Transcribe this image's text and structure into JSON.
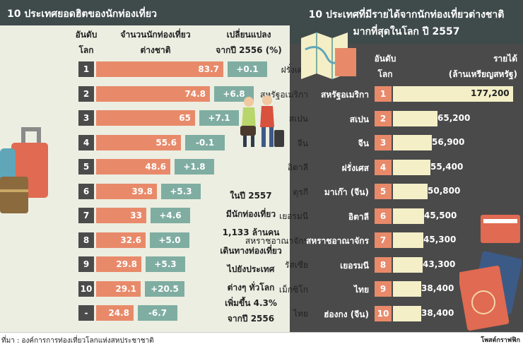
{
  "left": {
    "title": "10 ประเทศยอดฮิตของนักท่องเที่ยว",
    "headers": {
      "rank": [
        "อันดับ",
        "โลก"
      ],
      "arrivals": [
        "จำนวนนักท่องเที่ยว",
        "ต่างชาติ"
      ],
      "change": [
        "เปลี่ยนแปลง",
        "จากปี 2556 (%)"
      ]
    },
    "note_lines": [
      "ในปี 2557",
      "มีนักท่องเที่ยว",
      "1,133 ล้านคน",
      "เดินทางท่องเที่ยว",
      "ไปยังประเทศ",
      "ต่างๆ ทั่วโลก",
      "เพิ่มขึ้น 4.3%",
      "จากปี 2556"
    ]
  },
  "right": {
    "title_lines": [
      "10 ประเทศที่มีรายได้จากนักท่องเที่ยวต่างชาติ",
      "มากที่สุดในโลก ปี 2557"
    ],
    "headers": {
      "rank": [
        "อันดับ",
        "โลก"
      ],
      "revenue": [
        "รายได้",
        "(ล้านเหรียญสหรัฐ)"
      ]
    }
  },
  "source": {
    "left": "ที่มา : องค์การการท่องเที่ยวโลกแห่งสหประชาชาติ",
    "right": "โพสต์กราฟฟิก"
  },
  "chart_data": [
    {
      "type": "bar",
      "rows": [
        {
          "country": "ฝรั่งเศส",
          "rank": "1",
          "value": 83.7,
          "label": "83.7",
          "change": "+0.1"
        },
        {
          "country": "สหรัฐอเมริกา",
          "rank": "2",
          "value": 74.8,
          "label": "74.8",
          "change": "+6.8"
        },
        {
          "country": "สเปน",
          "rank": "3",
          "value": 65,
          "label": "65",
          "change": "+7.1"
        },
        {
          "country": "จีน",
          "rank": "4",
          "value": 55.6,
          "label": "55.6",
          "change": "-0.1"
        },
        {
          "country": "อิตาลี",
          "rank": "5",
          "value": 48.6,
          "label": "48.6",
          "change": "+1.8"
        },
        {
          "country": "ตุรกี",
          "rank": "6",
          "value": 39.8,
          "label": "39.8",
          "change": "+5.3"
        },
        {
          "country": "เยอรมนี",
          "rank": "7",
          "value": 33,
          "label": "33",
          "change": "+4.6"
        },
        {
          "country": "สหราชอาณาจักร",
          "rank": "8",
          "value": 32.6,
          "label": "32.6",
          "change": "+5.0"
        },
        {
          "country": "รัสเซีย",
          "rank": "9",
          "value": 29.8,
          "label": "29.8",
          "change": "+5.3"
        },
        {
          "country": "เม็กซิโก",
          "rank": "10",
          "value": 29.1,
          "label": "29.1",
          "change": "+20.5"
        },
        {
          "country": "ไทย",
          "rank": "-",
          "value": 24.8,
          "label": "24.8",
          "change": "-6.7"
        }
      ]
    },
    {
      "type": "bar",
      "rows": [
        {
          "country": "สหรัฐอเมริกา",
          "rank": "1",
          "value": 177200,
          "label": "177,200"
        },
        {
          "country": "สเปน",
          "rank": "2",
          "value": 65200,
          "label": "65,200"
        },
        {
          "country": "จีน",
          "rank": "3",
          "value": 56900,
          "label": "56,900"
        },
        {
          "country": "ฝรั่งเศส",
          "rank": "4",
          "value": 55400,
          "label": "55,400"
        },
        {
          "country": "มาเก๊า (จีน)",
          "rank": "5",
          "value": 50800,
          "label": "50,800"
        },
        {
          "country": "อิตาลี",
          "rank": "6",
          "value": 45500,
          "label": "45,500"
        },
        {
          "country": "สหราชอาณาจักร",
          "rank": "7",
          "value": 45300,
          "label": "45,300"
        },
        {
          "country": "เยอรมนี",
          "rank": "8",
          "value": 43300,
          "label": "43,300"
        },
        {
          "country": "ไทย",
          "rank": "9",
          "value": 38400,
          "label": "38,400"
        },
        {
          "country": "ฮ่องกง (จีน)",
          "rank": "10",
          "value": 38400,
          "label": "38,400"
        }
      ]
    }
  ]
}
